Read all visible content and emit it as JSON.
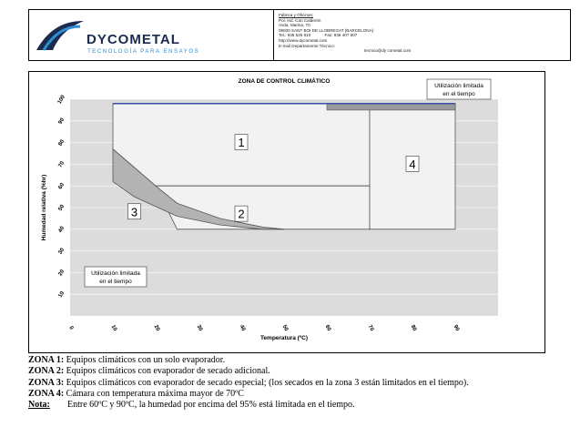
{
  "header": {
    "brand_name": "DYCOMETAL",
    "brand_tagline": "TECNOLOGÍA PARA ENSAYOS",
    "contact_lines": [
      "Fábrica y Oficinas:",
      "Pol. Ind. Can Calderón",
      "Avda. Marina, 70",
      "08830 SANT BOI DE LLOBREGAT (BARCELONA)",
      "Tel.: 936 526 610            Fax: 936 407 607",
      "http://www.dycometal.com",
      "E-mail Departamento Técnico:"
    ],
    "email": "tecnico@dy cometal.com"
  },
  "chart_data": {
    "type": "area",
    "title": "ZONA DE CONTROL CLIMÁTICO",
    "xlabel": "Temperatura (ºC)",
    "ylabel": "Humedad relativa (%hr)",
    "x_ticks": [
      "0",
      "10",
      "20",
      "30",
      "40",
      "50",
      "60",
      "70",
      "80",
      "90"
    ],
    "y_ticks": [
      "10",
      "20",
      "30",
      "40",
      "50",
      "60",
      "70",
      "80",
      "90",
      "100"
    ],
    "xlim": [
      0,
      100
    ],
    "ylim": [
      0,
      100
    ],
    "zones": [
      {
        "label": "1",
        "points": [
          [
            10,
            98
          ],
          [
            70,
            98
          ],
          [
            70,
            60
          ],
          [
            20,
            60
          ],
          [
            10,
            77
          ]
        ]
      },
      {
        "label": "2",
        "points": [
          [
            20,
            60
          ],
          [
            70,
            60
          ],
          [
            70,
            40
          ],
          [
            25,
            40
          ]
        ]
      },
      {
        "label": "3",
        "points": [
          [
            10,
            77
          ],
          [
            20,
            60
          ],
          [
            25,
            52
          ],
          [
            35,
            45
          ],
          [
            45,
            41
          ],
          [
            50,
            40
          ],
          [
            45,
            40
          ],
          [
            35,
            42
          ],
          [
            25,
            46
          ],
          [
            15,
            55
          ],
          [
            10,
            62
          ]
        ]
      },
      {
        "label": "4",
        "points": [
          [
            70,
            98
          ],
          [
            90,
            98
          ],
          [
            90,
            40
          ],
          [
            70,
            40
          ]
        ]
      }
    ],
    "annotations": [
      {
        "text": [
          "Utilización limitada",
          "en el tiempo"
        ],
        "position": "top-right"
      },
      {
        "text": [
          "Utilización limitada",
          "en el tiempo"
        ],
        "position": "bottom-left"
      }
    ]
  },
  "legend": [
    {
      "label": "ZONA 1:",
      "text": " Equipos climáticos con un solo evaporador."
    },
    {
      "label": "ZONA 2:",
      "text": " Equipos climáticos con evaporador de secado adicional."
    },
    {
      "label": "ZONA 3:",
      "text": " Equipos climáticos con evaporador de secado especial; (los secados en la zona 3 están limitados en el tiempo)."
    },
    {
      "label": "ZONA 4:",
      "text": " Cámara con temperatura máxima mayor de 70ºC"
    }
  ],
  "note": {
    "label": "Nota:",
    "text": "Entre 60ºC y 90ºC, la humedad por encima del 95% está limitada en el tiempo."
  },
  "colors": {
    "brand_navy": "#1b2a4f",
    "brand_blue": "#2c8fd0",
    "zone_fill": "#f2f2f2",
    "zone3_fill": "#b3b3b3",
    "strip_fill": "#9a9a9a"
  }
}
